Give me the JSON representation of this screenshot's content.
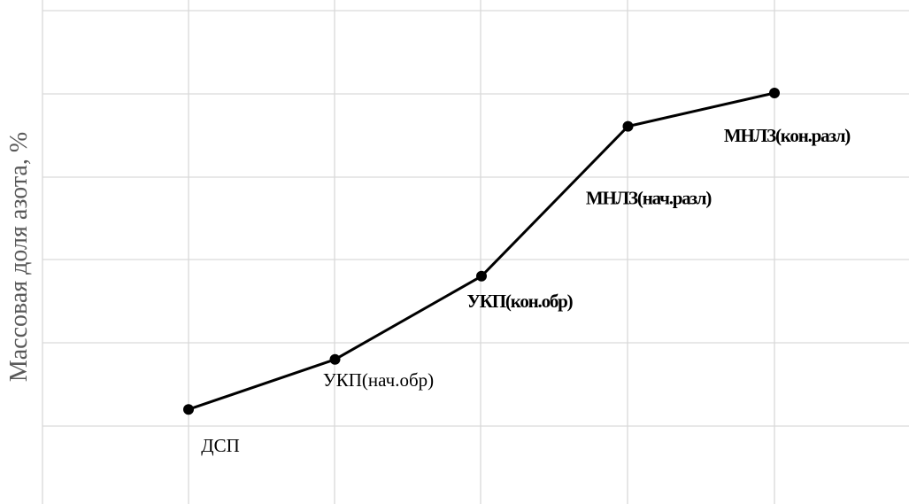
{
  "chart_data": {
    "type": "line",
    "title": "",
    "xlabel": "",
    "ylabel": "Массовая доля азота, %",
    "grid": true,
    "categories": [
      "ДСП",
      "УКП(нач.обр)",
      "УКП(кон.обр)",
      "МНЛЗ(нач.разл)",
      "МНЛЗ(кон.разл)"
    ],
    "series": [
      {
        "values": [
          1.2,
          1.8,
          2.8,
          4.6,
          5.0
        ]
      }
    ],
    "data_labels": [
      "ДСП",
      "УКП(нач.обр)",
      "УКП(кон.обр)",
      "МНЛЗ(нач.разл)",
      "МНЛЗ(кон.разл)"
    ],
    "ylim": [
      0,
      6
    ],
    "colors": {
      "line": "#000000",
      "grid": "#d9d9d9",
      "axis_label": "#595959"
    }
  }
}
